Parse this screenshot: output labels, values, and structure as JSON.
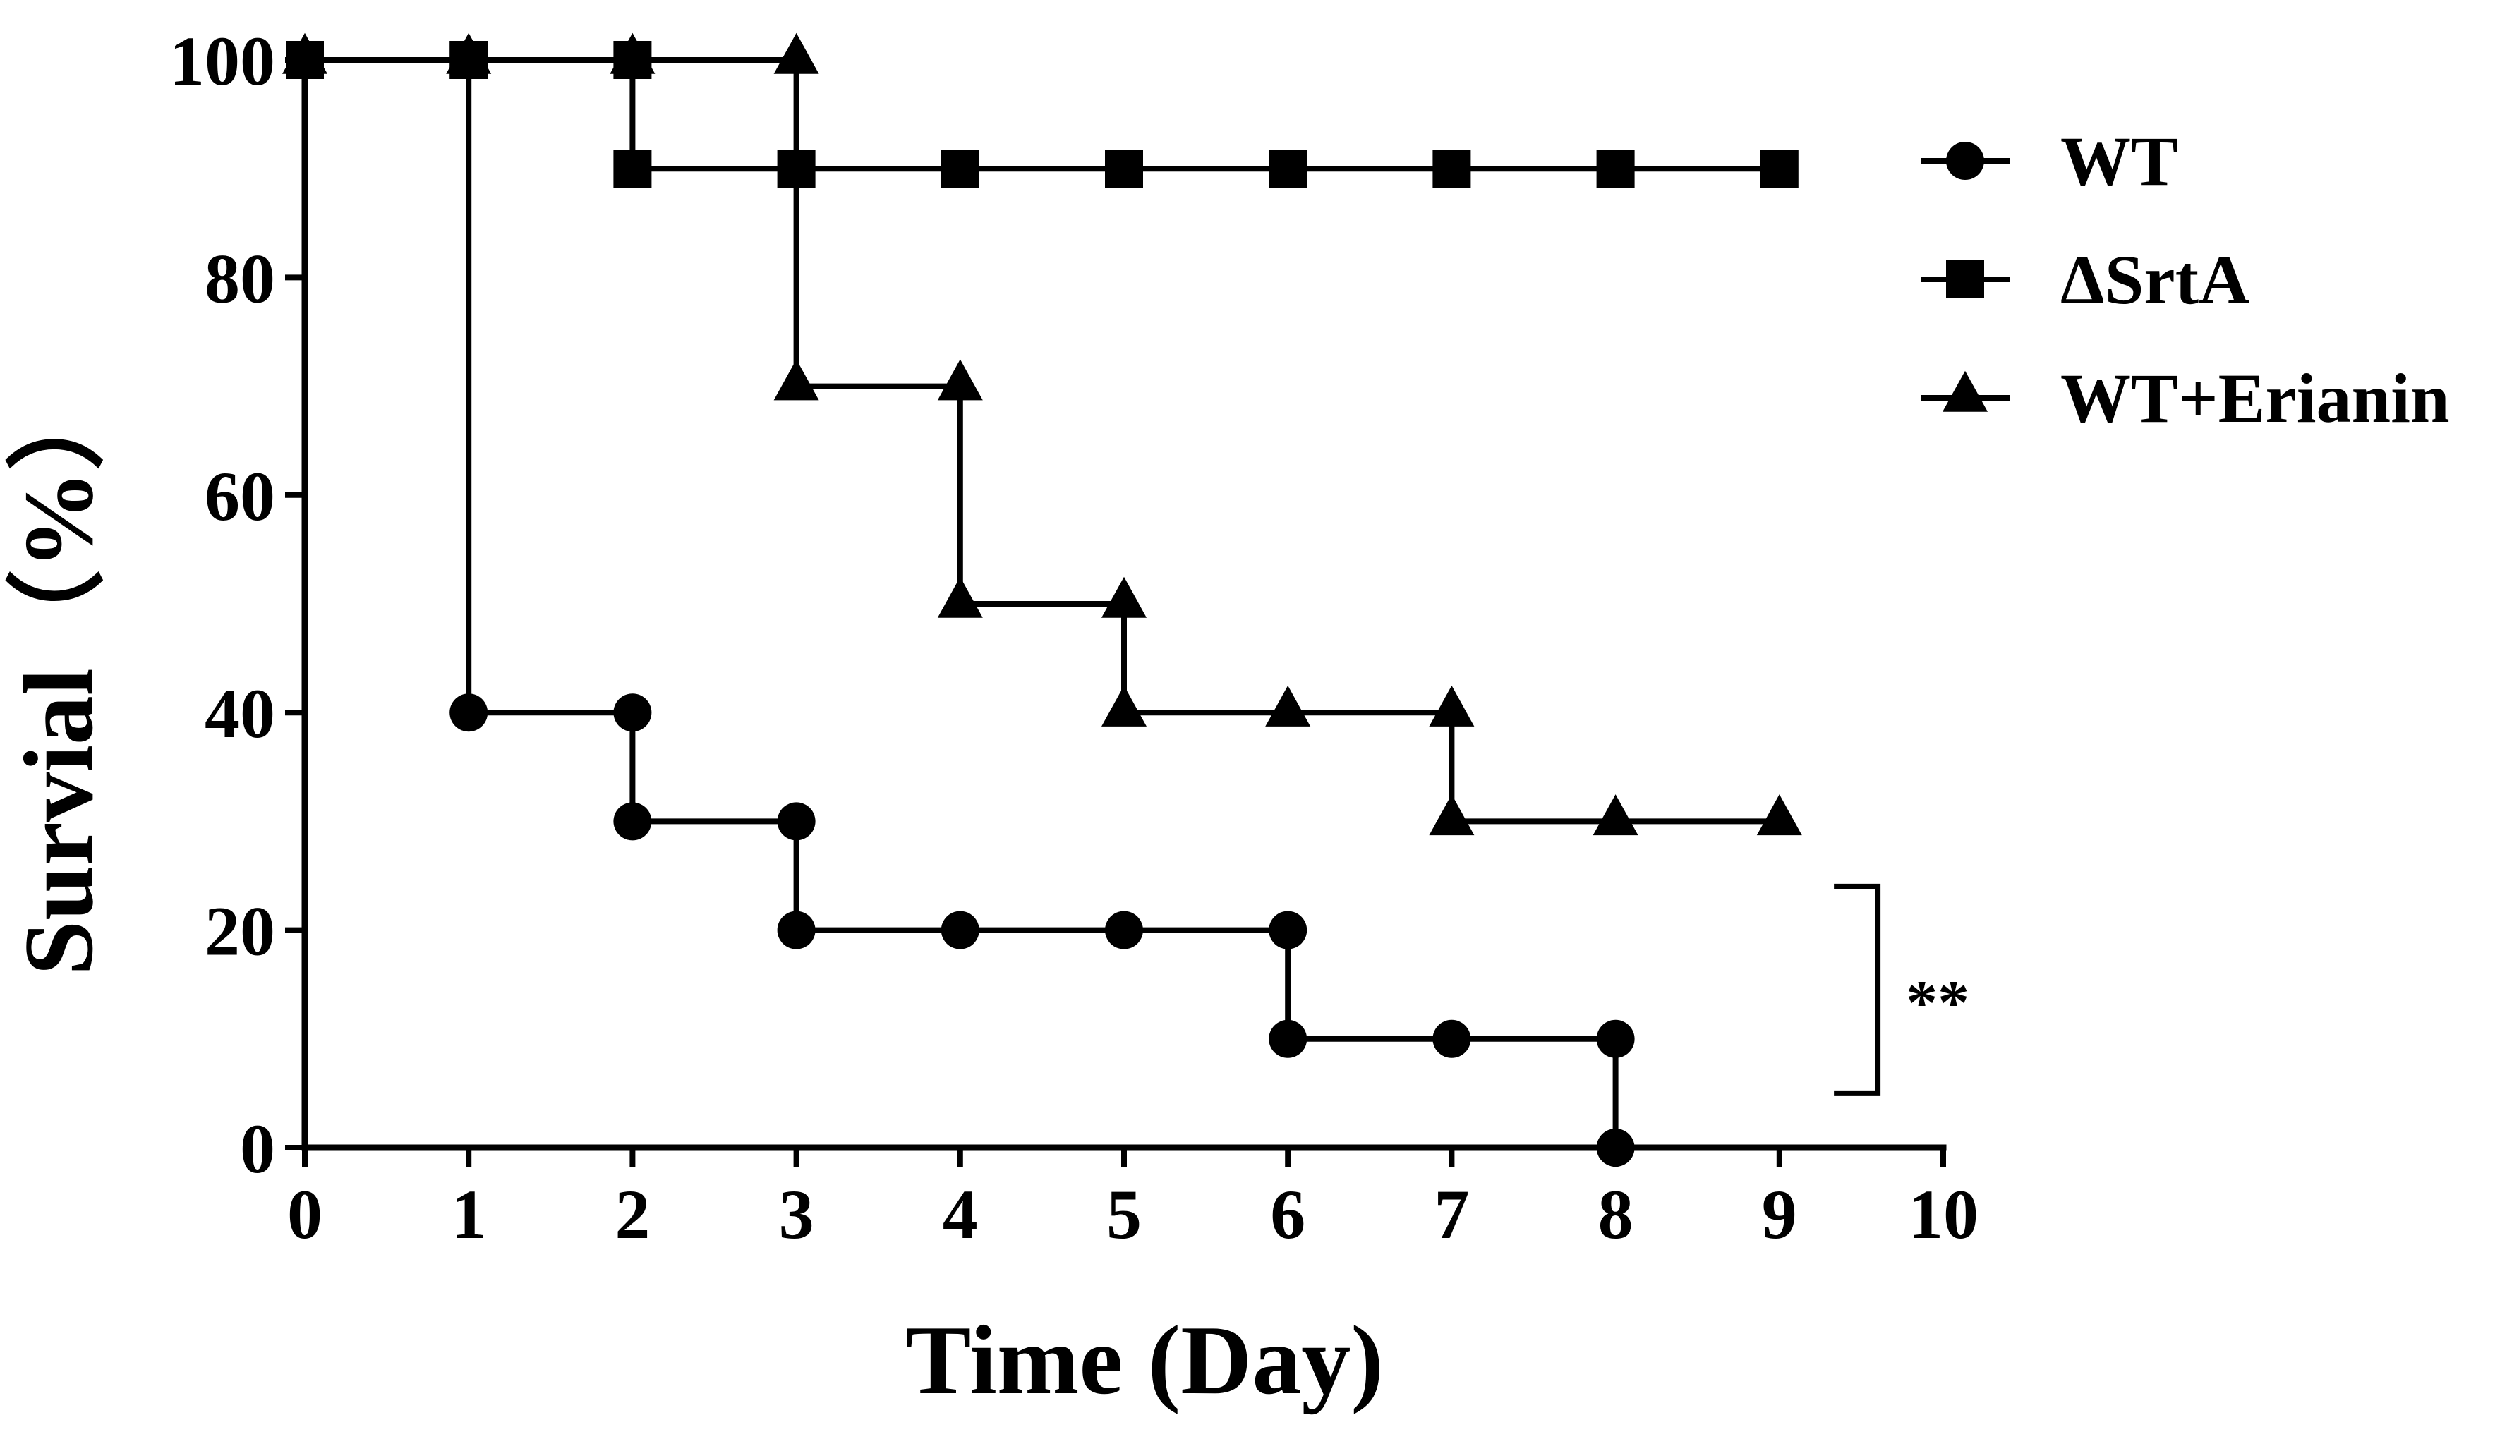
{
  "chart_data": {
    "type": "line",
    "subtype": "kaplan-meier-step",
    "xlabel": "Time (Day)",
    "ylabel": "Survial（%）",
    "xlim": [
      0,
      10
    ],
    "ylim": [
      0,
      100
    ],
    "x_ticks": [
      0,
      1,
      2,
      3,
      4,
      5,
      6,
      7,
      8,
      9,
      10
    ],
    "y_ticks": [
      0,
      20,
      40,
      60,
      80,
      100
    ],
    "grid": false,
    "legend_position": "top-right",
    "series": [
      {
        "name": "WT",
        "marker": "circle",
        "x": [
          0,
          1,
          2,
          3,
          4,
          5,
          6,
          7,
          8
        ],
        "y": [
          100,
          40,
          30,
          20,
          20,
          20,
          10,
          10,
          0
        ]
      },
      {
        "name": "ΔSrtA",
        "marker": "square",
        "x": [
          0,
          1,
          2,
          3,
          4,
          5,
          6,
          7,
          8,
          9
        ],
        "y": [
          100,
          100,
          90,
          90,
          90,
          90,
          90,
          90,
          90,
          90
        ]
      },
      {
        "name": "WT+Erianin",
        "marker": "triangle",
        "x": [
          0,
          1,
          2,
          3,
          4,
          5,
          6,
          7,
          8,
          9
        ],
        "y": [
          100,
          100,
          100,
          70,
          50,
          40,
          40,
          30,
          30,
          30
        ]
      }
    ],
    "annotations": [
      {
        "text": "**",
        "type": "significance-bracket",
        "y_range": [
          5,
          24
        ],
        "x": 9.6
      }
    ]
  }
}
